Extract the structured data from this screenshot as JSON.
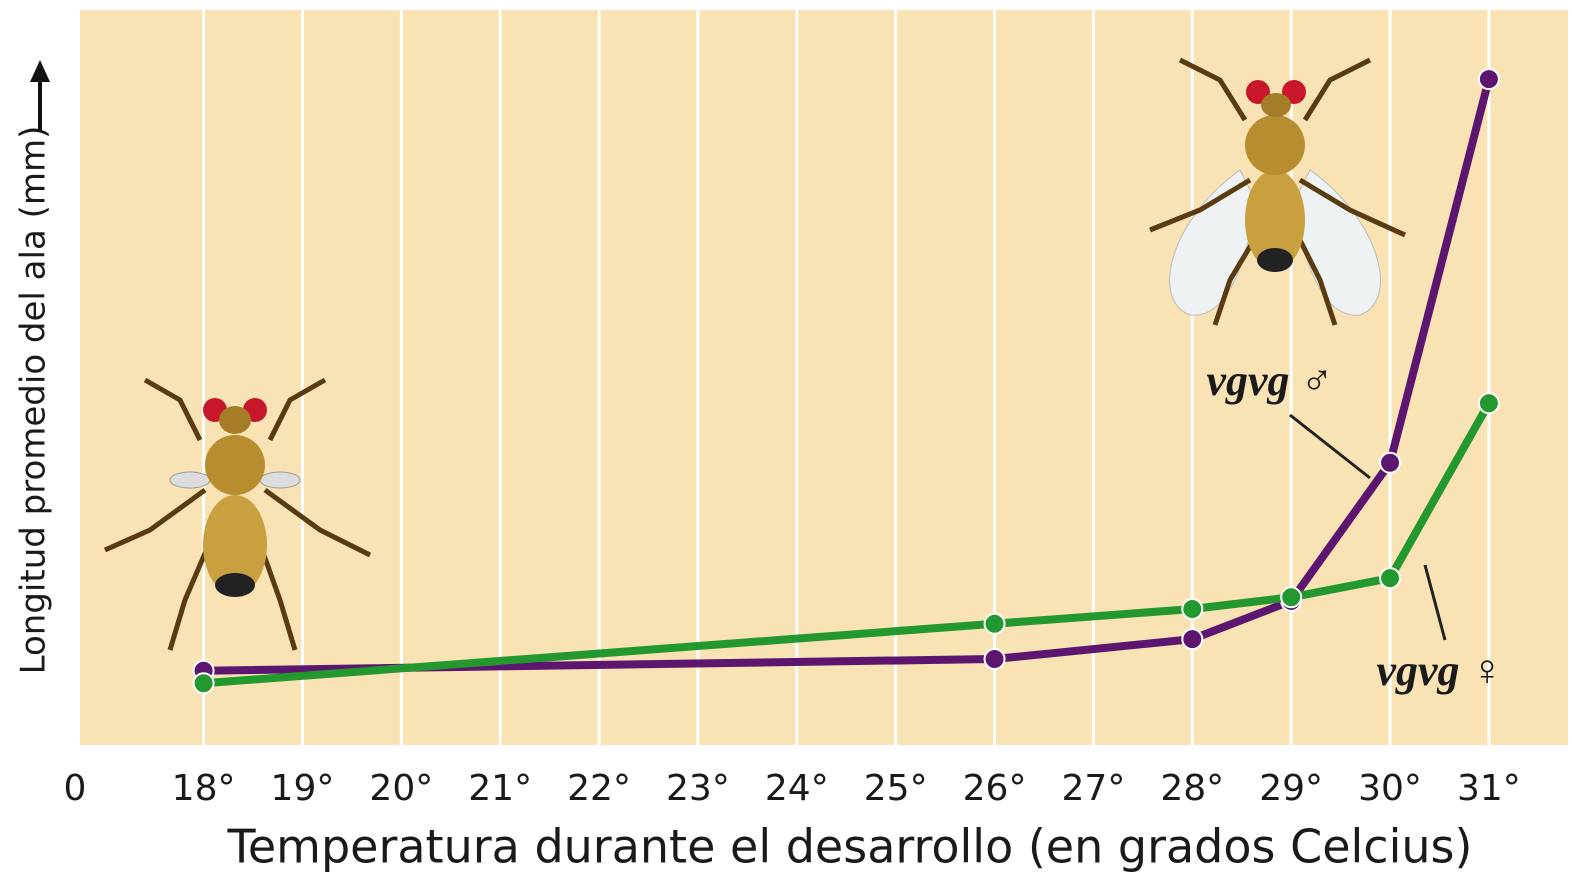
{
  "chart_data": {
    "type": "line",
    "y_axis_label": "Longitud promedio del ala (mm)",
    "x_axis_label": "Temperatura durante el desarrollo (en grados Celcius)",
    "origin_label": "0",
    "x": [
      18,
      26,
      28,
      29,
      30,
      31
    ],
    "series": [
      {
        "name": "vgvg ♂",
        "color": "#5c1670",
        "values": [
          10.1,
          11.7,
          14.4,
          19.6,
          38.4,
          90.6
        ]
      },
      {
        "name": "vgvg ♀",
        "color": "#23982e",
        "values": [
          8.4,
          16.5,
          18.5,
          20.1,
          22.7,
          46.5
        ]
      }
    ],
    "xlim": [
      16.75,
      31.8
    ],
    "xticks": [
      {
        "value": 18,
        "label": "18°"
      },
      {
        "value": 19,
        "label": "19°"
      },
      {
        "value": 20,
        "label": "20°"
      },
      {
        "value": 21,
        "label": "21°"
      },
      {
        "value": 22,
        "label": "22°"
      },
      {
        "value": 23,
        "label": "23°"
      },
      {
        "value": 24,
        "label": "24°"
      },
      {
        "value": 25,
        "label": "25°"
      },
      {
        "value": 26,
        "label": "26°"
      },
      {
        "value": 27,
        "label": "27°"
      },
      {
        "value": 28,
        "label": "28°"
      },
      {
        "value": 29,
        "label": "29°"
      },
      {
        "value": 30,
        "label": "30°"
      },
      {
        "value": 31,
        "label": "31°"
      }
    ],
    "ylim": [
      0,
      100
    ],
    "grid": true
  }
}
